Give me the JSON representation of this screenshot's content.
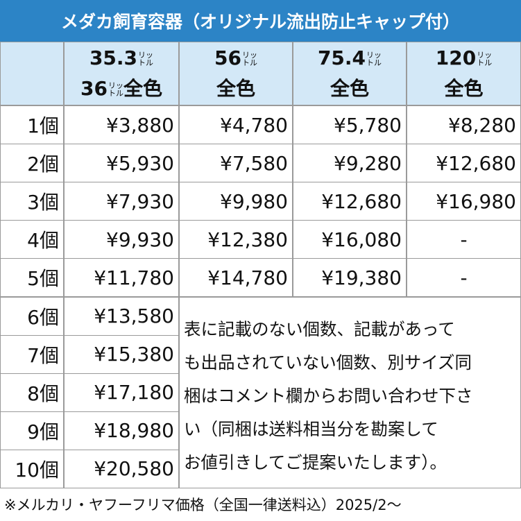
{
  "header": {
    "title": "メダカ飼育容器（オリジナル流出防止キャップ付）"
  },
  "table": {
    "columns": [
      {
        "amount": "35.3",
        "unit": [
          "リッ",
          "トル"
        ],
        "sub_amount": "36",
        "sub_unit": [
          "リッ",
          "トル"
        ],
        "color": "全色"
      },
      {
        "amount": "56",
        "unit": [
          "リッ",
          "トル"
        ],
        "color": "全色"
      },
      {
        "amount": "75.4",
        "unit": [
          "リッ",
          "トル"
        ],
        "color": "全色"
      },
      {
        "amount": "120",
        "unit": [
          "リッ",
          "トル"
        ],
        "color": "全色"
      }
    ],
    "rows": [
      [
        "1個",
        "¥3,880",
        "¥4,780",
        "¥5,780",
        "¥8,280"
      ],
      [
        "2個",
        "¥5,930",
        "¥7,580",
        "¥9,280",
        "¥12,680"
      ],
      [
        "3個",
        "¥7,930",
        "¥9,980",
        "¥12,680",
        "¥16,980"
      ],
      [
        "4個",
        "¥9,930",
        "¥12,380",
        "¥16,080",
        "-"
      ],
      [
        "5個",
        "¥11,780",
        "¥14,780",
        "¥19,380",
        "-"
      ],
      [
        "6個",
        "¥13,580"
      ],
      [
        "7個",
        "¥15,380"
      ],
      [
        "8個",
        "¥17,180"
      ],
      [
        "9個",
        "¥18,980"
      ],
      [
        "10個",
        "¥20,580"
      ]
    ],
    "note": [
      "表に記載のない個数、記載があって",
      "も出品されていない個数、別サイズ同",
      "梱はコメント欄からお問い合わせ下さ",
      "い（同梱は送料相当分を勘案して",
      "お値引きしてご提案いたします）。"
    ]
  },
  "footer": "※メルカリ・ヤフーフリマ価格（全国一律送料込）2025/2～"
}
